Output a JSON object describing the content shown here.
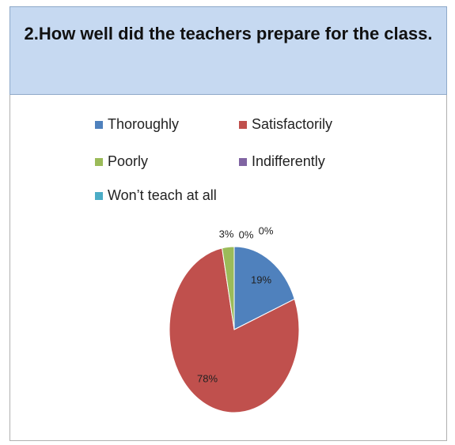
{
  "chart_data": {
    "type": "pie",
    "title": "2.How well did the teachers prepare for the class.",
    "categories": [
      "Thoroughly",
      "Satisfactorily",
      "Poorly",
      "Indifferently",
      "Won’t teach at all"
    ],
    "values": [
      19,
      78,
      3,
      0,
      0
    ],
    "value_labels": [
      "19%",
      "78%",
      "3%",
      "0%",
      "0%"
    ],
    "colors": [
      "#4f81bd",
      "#c0504d",
      "#9bbb59",
      "#8064a2",
      "#4bacc6"
    ],
    "legend": "top"
  }
}
